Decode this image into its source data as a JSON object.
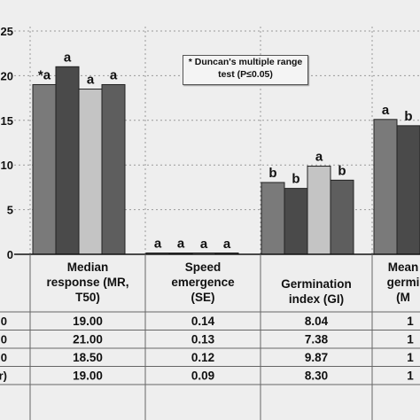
{
  "chart_data": {
    "type": "bar",
    "y_ticks": [
      "25",
      "20",
      "15",
      "10",
      "5",
      "0"
    ],
    "ylim": [
      0,
      25
    ],
    "grid": true,
    "categories": [
      [
        "Median",
        "response (MR,",
        "T50)"
      ],
      [
        "Speed",
        "emergence",
        "(SE)"
      ],
      [
        "Germination",
        "index (GI)"
      ],
      [
        "Mean",
        "germi",
        "(M"
      ]
    ],
    "series": [
      {
        "name": "",
        "color": "#7a7a7a",
        "values": [
          19.0,
          0.14,
          8.04,
          15.1
        ]
      },
      {
        "name": "",
        "color": "#4a4a4a",
        "values": [
          21.0,
          0.13,
          7.38,
          14.4
        ]
      },
      {
        "name": "",
        "color": "#c4c4c4",
        "values": [
          18.5,
          0.12,
          9.87,
          null
        ]
      },
      {
        "name": "",
        "color": "#5e5e5e",
        "values": [
          19.0,
          0.09,
          8.3,
          null
        ]
      }
    ],
    "bar_letters": [
      [
        "*a",
        "a",
        "a",
        "a"
      ],
      [
        "a",
        "a",
        "a",
        "a"
      ],
      [
        "b",
        "b",
        "a",
        "b"
      ],
      [
        "a",
        "b",
        "",
        ""
      ]
    ],
    "annotation": [
      "* Duncan's multiple range",
      "test (P≤0.05)"
    ],
    "table": {
      "row_labels": [
        "0",
        "0",
        "0",
        "ter)"
      ],
      "rows": [
        [
          "19.00",
          "0.14",
          "8.04",
          "1"
        ],
        [
          "21.00",
          "0.13",
          "7.38",
          "1"
        ],
        [
          "18.50",
          "0.12",
          "9.87",
          "1"
        ],
        [
          "19.00",
          "0.09",
          "8.30",
          "1"
        ]
      ]
    }
  }
}
